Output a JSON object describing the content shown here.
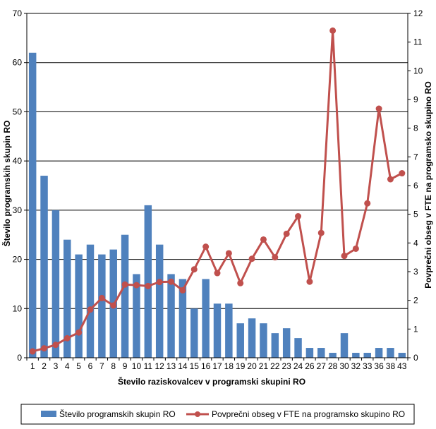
{
  "chart_data": {
    "type": "bar",
    "categories": [
      "1",
      "2",
      "3",
      "4",
      "5",
      "6",
      "7",
      "8",
      "9",
      "10",
      "11",
      "12",
      "13",
      "14",
      "15",
      "16",
      "17",
      "18",
      "19",
      "20",
      "21",
      "22",
      "23",
      "24",
      "26",
      "27",
      "28",
      "30",
      "32",
      "33",
      "36",
      "38",
      "43"
    ],
    "series": [
      {
        "name": "Število programskih skupin RO",
        "type": "bar",
        "axis": "left",
        "color": "#4F81BD",
        "values": [
          62,
          37,
          30,
          24,
          21,
          23,
          21,
          22,
          25,
          17,
          31,
          23,
          17,
          16,
          10,
          16,
          11,
          11,
          7,
          8,
          7,
          5,
          6,
          4,
          2,
          2,
          1,
          5,
          1,
          1,
          2,
          2,
          1
        ]
      },
      {
        "name": "Povprečni obseg v FTE na programsko skupino RO",
        "type": "line",
        "axis": "right",
        "color": "#C0504D",
        "values": [
          0.22,
          0.33,
          0.45,
          0.68,
          0.88,
          1.68,
          2.08,
          1.82,
          2.55,
          2.53,
          2.5,
          2.64,
          2.65,
          2.35,
          3.08,
          3.87,
          2.95,
          3.64,
          2.6,
          3.45,
          4.12,
          3.5,
          4.32,
          4.93,
          2.65,
          4.35,
          11.4,
          3.55,
          3.8,
          5.38,
          8.68,
          6.22,
          6.43
        ]
      }
    ],
    "xlabel": "Število raziskovalcev v programski skupini RO",
    "ylabel": "Število programskih skupin RO",
    "y2label": "Povprečni obseg v FTE na programsko skupino RO",
    "ylim": [
      0,
      70
    ],
    "y2lim": [
      0,
      12
    ],
    "yticks": [
      "0",
      "10",
      "20",
      "30",
      "40",
      "50",
      "60",
      "70"
    ],
    "y2ticks": [
      "0",
      "1",
      "2",
      "3",
      "4",
      "5",
      "6",
      "7",
      "8",
      "9",
      "10",
      "11",
      "12"
    ],
    "grid": true,
    "legend": "bottom"
  }
}
